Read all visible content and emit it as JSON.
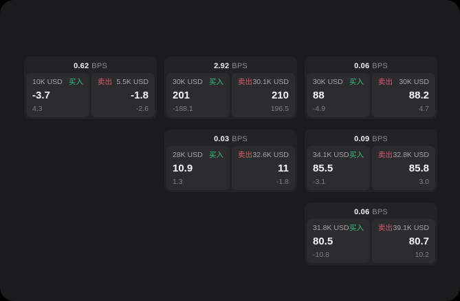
{
  "labels": {
    "bps": "BPS",
    "buy": "买入",
    "sell": "卖出"
  },
  "colors": {
    "buy": "#32bf7c",
    "sell": "#d85a6f",
    "window_bg": "#1b1b1d",
    "card_bg": "#232326",
    "panel_bg": "#2c2c2e"
  },
  "cards": [
    {
      "bps": "0.62",
      "buy": {
        "amount": "10K USD",
        "value": "-3.7",
        "sub": "4.3"
      },
      "sell": {
        "amount": "5.5K USD",
        "value": "-1.8",
        "sub": "-2.6"
      }
    },
    {
      "bps": "2.92",
      "buy": {
        "amount": "30K USD",
        "value": "201",
        "sub": "-188.1"
      },
      "sell": {
        "amount": "30.1K USD",
        "value": "210",
        "sub": "196.5"
      }
    },
    {
      "bps": "0.06",
      "buy": {
        "amount": "30K USD",
        "value": "88",
        "sub": "-4.9"
      },
      "sell": {
        "amount": "30K USD",
        "value": "88.2",
        "sub": "4.7"
      }
    },
    {
      "bps": "0.03",
      "buy": {
        "amount": "28K USD",
        "value": "10.9",
        "sub": "1.3"
      },
      "sell": {
        "amount": "32.6K USD",
        "value": "11",
        "sub": "-1.8"
      }
    },
    {
      "bps": "0.09",
      "buy": {
        "amount": "34.1K USD",
        "value": "85.5",
        "sub": "-3.1"
      },
      "sell": {
        "amount": "32.8K USD",
        "value": "85.8",
        "sub": "3.0"
      }
    },
    {
      "bps": "0.06",
      "buy": {
        "amount": "31.8K USD",
        "value": "80.5",
        "sub": "-10.8"
      },
      "sell": {
        "amount": "39.1K USD",
        "value": "80.7",
        "sub": "10.2"
      }
    }
  ]
}
